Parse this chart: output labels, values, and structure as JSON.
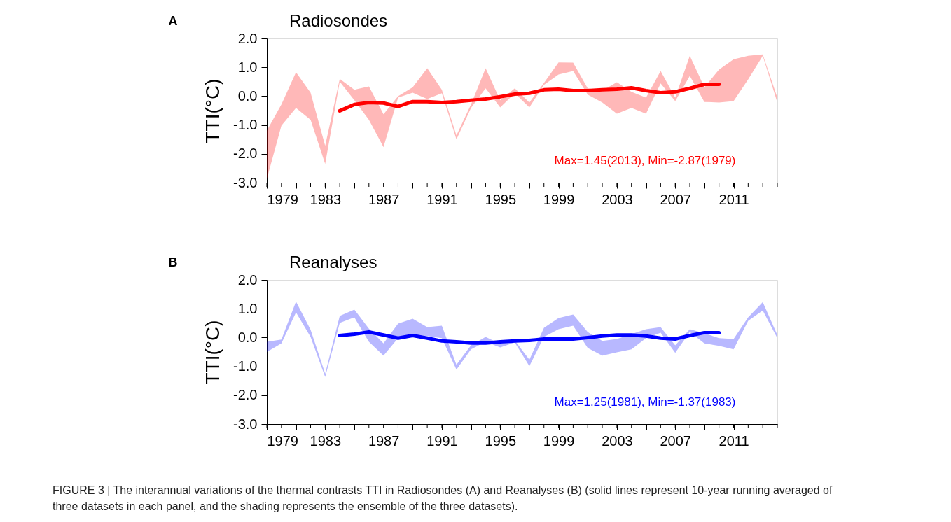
{
  "chart_data": [
    {
      "type": "line",
      "title": "Radiosondes",
      "ylabel": "TTI(°C)",
      "annotations": [
        "A",
        "Max=1.45(2013), Min=-2.87(1979)"
      ],
      "x": [
        1979,
        1980,
        1981,
        1982,
        1983,
        1984,
        1985,
        1986,
        1987,
        1988,
        1989,
        1990,
        1991,
        1992,
        1993,
        1994,
        1995,
        1996,
        1997,
        1998,
        1999,
        2000,
        2001,
        2002,
        2003,
        2004,
        2005,
        2006,
        2007,
        2008,
        2009,
        2010,
        2011,
        2012,
        2013,
        2014
      ],
      "series": [
        {
          "color": "#ff0000",
          "lower": [
            -2.87,
            -1.02,
            -0.41,
            -0.82,
            -2.35,
            0.5,
            -0.14,
            -0.82,
            -1.77,
            -0.05,
            0.12,
            -0.1,
            0.1,
            -1.5,
            -0.41,
            0.27,
            -0.39,
            0.1,
            -0.39,
            0.39,
            0.75,
            0.87,
            0.05,
            -0.22,
            -0.61,
            -0.41,
            -0.61,
            0.44,
            -0.17,
            0.7,
            -0.2,
            -0.22,
            -0.17,
            0.58,
            1.4,
            -0.22
          ],
          "upper": [
            -1.2,
            -0.29,
            0.83,
            0.12,
            -1.72,
            0.6,
            0.22,
            0.34,
            -0.63,
            0.0,
            0.31,
            0.97,
            0.22,
            -1.36,
            -0.29,
            0.97,
            -0.14,
            0.27,
            -0.22,
            0.46,
            1.17,
            1.16,
            0.27,
            0.19,
            0.48,
            0.15,
            -0.05,
            0.87,
            -0.05,
            1.4,
            0.31,
            0.92,
            1.28,
            1.4,
            1.45,
            -0.05
          ],
          "values": [
            null,
            null,
            null,
            null,
            null,
            -0.51,
            -0.29,
            -0.22,
            -0.24,
            -0.36,
            -0.19,
            -0.19,
            -0.22,
            -0.19,
            -0.14,
            -0.1,
            -0.02,
            0.07,
            0.1,
            0.22,
            0.24,
            0.19,
            0.19,
            0.22,
            0.24,
            0.29,
            0.19,
            0.12,
            0.15,
            0.27,
            0.41,
            0.41,
            null,
            null,
            null,
            null
          ]
        }
      ],
      "xlim": [
        1979,
        2014
      ],
      "xticks": [
        1979,
        {
          "value": 1980,
          "label": null
        },
        {
          "value": 1981,
          "label": null
        },
        {
          "value": 1982,
          "label": null
        },
        1983,
        {
          "value": 1984,
          "label": null
        },
        {
          "value": 1985,
          "label": null
        },
        {
          "value": 1986,
          "label": null
        },
        1987,
        {
          "value": 1988,
          "label": null
        },
        {
          "value": 1989,
          "label": null
        },
        {
          "value": 1990,
          "label": null
        },
        1991,
        {
          "value": 1992,
          "label": null
        },
        {
          "value": 1993,
          "label": null
        },
        {
          "value": 1994,
          "label": null
        },
        1995,
        {
          "value": 1996,
          "label": null
        },
        {
          "value": 1997,
          "label": null
        },
        {
          "value": 1998,
          "label": null
        },
        1999,
        {
          "value": 2000,
          "label": null
        },
        {
          "value": 2001,
          "label": null
        },
        {
          "value": 2002,
          "label": null
        },
        2003,
        {
          "value": 2004,
          "label": null
        },
        {
          "value": 2005,
          "label": null
        },
        {
          "value": 2006,
          "label": null
        },
        2007,
        {
          "value": 2008,
          "label": null
        },
        {
          "value": 2009,
          "label": null
        },
        {
          "value": 2010,
          "label": null
        },
        2011,
        {
          "value": 2012,
          "label": null
        },
        {
          "value": 2013,
          "label": null
        },
        {
          "value": 2014,
          "label": null
        }
      ],
      "ylim": [
        -3,
        2
      ],
      "yticks": [
        {
          "value": -3,
          "label": "-3.0"
        },
        {
          "value": -2,
          "label": "-2.0"
        },
        {
          "value": -1,
          "label": "-1.0"
        },
        {
          "value": 0,
          "label": "0.0"
        },
        {
          "value": 1,
          "label": "1.0"
        },
        {
          "value": 2,
          "label": "2.0"
        }
      ],
      "grid": false,
      "line_style": "solid",
      "marker": "none"
    },
    {
      "type": "line",
      "title": "Reanalyses",
      "ylabel": "TTI(°C)",
      "annotations": [
        "B",
        "Max=1.25(1981), Min=-1.37(1983)",
        "FIGURE 3 | The interannual variations of the thermal contrasts TTI in Radiosondes (A) and Reanalyses (B) (solid lines represent 10-year running averaged of three datasets in each panel, and the shading represents the ensemble of the three datasets)."
      ],
      "x": [
        1979,
        1980,
        1981,
        1982,
        1983,
        1984,
        1985,
        1986,
        1987,
        1988,
        1989,
        1990,
        1991,
        1992,
        1993,
        1994,
        1995,
        1996,
        1997,
        1998,
        1999,
        2000,
        2001,
        2002,
        2003,
        2004,
        2005,
        2006,
        2007,
        2008,
        2009,
        2010,
        2011,
        2012,
        2013,
        2014
      ],
      "series": [
        {
          "color": "#0000ff",
          "lower": [
            -0.5,
            -0.2,
            0.87,
            0.02,
            -1.37,
            0.51,
            0.7,
            -0.15,
            -0.63,
            -0.02,
            0.09,
            0.05,
            -0.02,
            -1.11,
            -0.41,
            -0.15,
            -0.34,
            -0.17,
            -0.99,
            0.02,
            0.29,
            0.41,
            -0.36,
            -0.63,
            -0.51,
            -0.41,
            -0.02,
            0.17,
            -0.53,
            0.19,
            -0.2,
            -0.29,
            -0.41,
            0.58,
            0.94,
            -0.02
          ],
          "upper": [
            -0.15,
            -0.07,
            1.25,
            0.27,
            -1.25,
            0.75,
            0.97,
            0.31,
            -0.2,
            0.48,
            0.65,
            0.36,
            0.41,
            -0.94,
            -0.27,
            0.02,
            -0.22,
            -0.1,
            -0.77,
            0.34,
            0.68,
            0.8,
            0.19,
            -0.12,
            -0.05,
            0.12,
            0.29,
            0.36,
            -0.27,
            0.29,
            0.15,
            -0.02,
            -0.05,
            0.7,
            1.23,
            0.09
          ],
          "values": [
            null,
            null,
            null,
            null,
            null,
            0.07,
            0.12,
            0.19,
            0.09,
            -0.02,
            0.07,
            -0.02,
            -0.12,
            -0.15,
            -0.19,
            -0.19,
            -0.15,
            -0.12,
            -0.1,
            -0.05,
            -0.05,
            -0.05,
            0.0,
            0.05,
            0.09,
            0.09,
            0.05,
            -0.02,
            -0.05,
            0.07,
            0.17,
            0.17,
            null,
            null,
            null,
            null
          ]
        }
      ],
      "xlim": [
        1979,
        2014
      ],
      "xticks": [
        1979,
        {
          "value": 1980,
          "label": null
        },
        {
          "value": 1981,
          "label": null
        },
        {
          "value": 1982,
          "label": null
        },
        1983,
        {
          "value": 1984,
          "label": null
        },
        {
          "value": 1985,
          "label": null
        },
        {
          "value": 1986,
          "label": null
        },
        1987,
        {
          "value": 1988,
          "label": null
        },
        {
          "value": 1989,
          "label": null
        },
        {
          "value": 1990,
          "label": null
        },
        1991,
        {
          "value": 1992,
          "label": null
        },
        {
          "value": 1993,
          "label": null
        },
        {
          "value": 1994,
          "label": null
        },
        1995,
        {
          "value": 1996,
          "label": null
        },
        {
          "value": 1997,
          "label": null
        },
        {
          "value": 1998,
          "label": null
        },
        1999,
        {
          "value": 2000,
          "label": null
        },
        {
          "value": 2001,
          "label": null
        },
        {
          "value": 2002,
          "label": null
        },
        2003,
        {
          "value": 2004,
          "label": null
        },
        {
          "value": 2005,
          "label": null
        },
        {
          "value": 2006,
          "label": null
        },
        2007,
        {
          "value": 2008,
          "label": null
        },
        {
          "value": 2009,
          "label": null
        },
        {
          "value": 2010,
          "label": null
        },
        2011,
        {
          "value": 2012,
          "label": null
        },
        {
          "value": 2013,
          "label": null
        },
        {
          "value": 2014,
          "label": null
        }
      ],
      "ylim": [
        -3,
        2
      ],
      "yticks": [
        {
          "value": -3,
          "label": "-3.0"
        },
        {
          "value": -2,
          "label": "-2.0"
        },
        {
          "value": -1,
          "label": "-1.0"
        },
        {
          "value": 0,
          "label": "0.0"
        },
        {
          "value": 1,
          "label": "1.0"
        },
        {
          "value": 2,
          "label": "2.0"
        }
      ],
      "grid": false,
      "line_style": "solid",
      "marker": "none"
    }
  ]
}
